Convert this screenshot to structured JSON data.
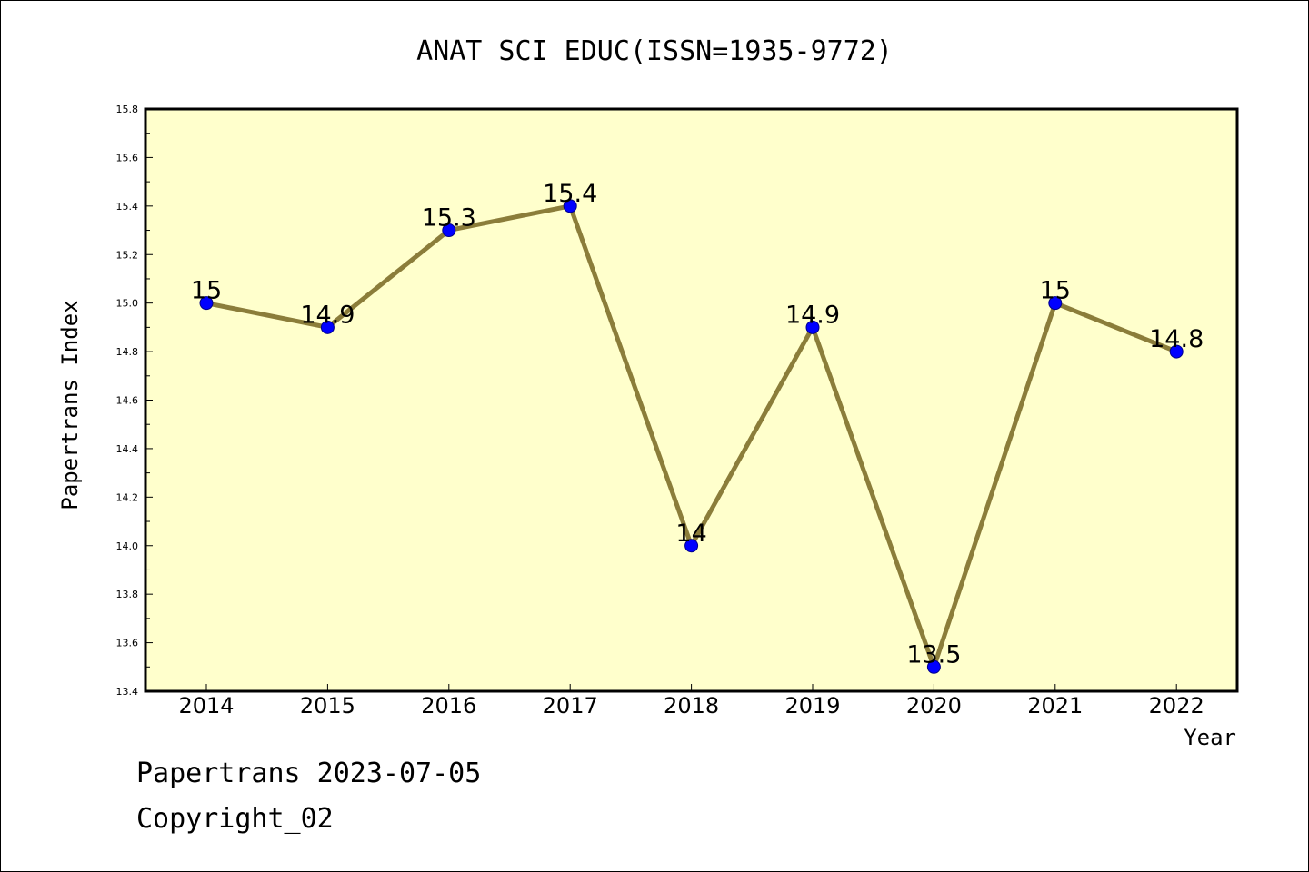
{
  "chart_data": {
    "type": "line",
    "title": "ANAT SCI EDUC(ISSN=1935-9772)",
    "xlabel": "Year",
    "ylabel": "Papertrans Index",
    "categories": [
      "2014",
      "2015",
      "2016",
      "2017",
      "2018",
      "2019",
      "2020",
      "2021",
      "2022"
    ],
    "values": [
      15,
      14.9,
      15.3,
      15.4,
      14,
      14.9,
      13.5,
      15,
      14.8
    ],
    "data_labels": [
      "15",
      "14.9",
      "15.3",
      "15.4",
      "14",
      "14.9",
      "13.5",
      "15",
      "14.8"
    ],
    "ylim": [
      13.4,
      15.8
    ],
    "y_ticks": [
      "13.4",
      "13.6",
      "13.8",
      "14.0",
      "14.2",
      "14.4",
      "14.6",
      "14.8",
      "15.0",
      "15.2",
      "15.4",
      "15.6",
      "15.8"
    ],
    "grid": false,
    "legend": "none",
    "colors": {
      "plot_background": "#ffffcc",
      "line": "#8b7d3a",
      "marker": "#0000ff"
    }
  },
  "footer": {
    "date_line": "Papertrans 2023-07-05",
    "copyright_line": "Copyright_02"
  }
}
